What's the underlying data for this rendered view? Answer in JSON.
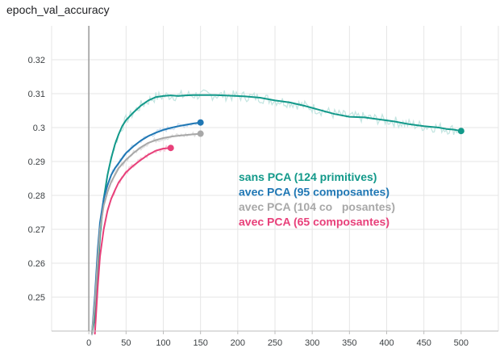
{
  "chart_data": {
    "type": "line",
    "title": "epoch_val_accuracy",
    "xlabel": "",
    "ylabel": "",
    "xlim": [
      -50,
      550
    ],
    "ylim": [
      0.24,
      0.33
    ],
    "x_ticks": [
      0,
      50,
      100,
      150,
      200,
      250,
      300,
      350,
      400,
      450,
      500
    ],
    "y_ticks": [
      0.25,
      0.26,
      0.27,
      0.28,
      0.29,
      0.3,
      0.31,
      0.32
    ],
    "y_tick_labels": [
      "0.25",
      "0.26",
      "0.27",
      "0.28",
      "0.29",
      "0.3",
      "0.31",
      "0.32"
    ],
    "grid": true,
    "legend_position": "center",
    "series": [
      {
        "name": "sans PCA (124 primitives)",
        "color": "#12998a",
        "raw_color": "#bfe3df",
        "x": [
          4,
          8,
          12,
          15,
          20,
          25,
          30,
          35,
          40,
          45,
          50,
          60,
          70,
          80,
          90,
          100,
          110,
          120,
          130,
          140,
          150,
          170,
          190,
          210,
          230,
          250,
          270,
          290,
          310,
          330,
          350,
          370,
          390,
          410,
          430,
          450,
          470,
          480,
          490,
          500
        ],
        "y": [
          0.239,
          0.244,
          0.257,
          0.268,
          0.279,
          0.286,
          0.291,
          0.295,
          0.298,
          0.3005,
          0.3022,
          0.3045,
          0.3065,
          0.308,
          0.309,
          0.3093,
          0.3095,
          0.3093,
          0.3095,
          0.3096,
          0.3096,
          0.3096,
          0.3094,
          0.3092,
          0.3088,
          0.308,
          0.3074,
          0.3064,
          0.3052,
          0.304,
          0.3032,
          0.303,
          0.3024,
          0.3018,
          0.301,
          0.3004,
          0.3,
          0.2996,
          0.2994,
          0.299
        ]
      },
      {
        "name": "avec PCA (95 composantes)",
        "color": "#1f77b4",
        "raw_color": "#c8dcf0",
        "x": [
          4,
          8,
          12,
          15,
          20,
          25,
          30,
          35,
          40,
          50,
          60,
          70,
          80,
          90,
          100,
          110,
          120,
          130,
          140,
          150
        ],
        "y": [
          0.239,
          0.25,
          0.264,
          0.272,
          0.279,
          0.283,
          0.286,
          0.288,
          0.2895,
          0.2925,
          0.2945,
          0.2962,
          0.2975,
          0.2985,
          0.2993,
          0.2999,
          0.3004,
          0.3008,
          0.3012,
          0.3015
        ]
      },
      {
        "name": "avec PCA (104 co   posantes)",
        "color": "#a8a8a8",
        "raw_color": "#dddddd",
        "x": [
          4,
          8,
          12,
          15,
          20,
          25,
          30,
          35,
          40,
          50,
          60,
          70,
          80,
          90,
          100,
          110,
          120,
          130,
          140,
          150
        ],
        "y": [
          0.239,
          0.248,
          0.261,
          0.27,
          0.277,
          0.281,
          0.284,
          0.286,
          0.288,
          0.2905,
          0.2925,
          0.2942,
          0.2955,
          0.2963,
          0.2969,
          0.2973,
          0.2976,
          0.2978,
          0.298,
          0.2982
        ]
      },
      {
        "name": "avec PCA (65 composantes)",
        "color": "#e8407a",
        "raw_color": "#f5c6d6",
        "x": [
          8,
          12,
          15,
          20,
          25,
          30,
          35,
          40,
          50,
          60,
          70,
          80,
          90,
          100,
          110
        ],
        "y": [
          0.239,
          0.253,
          0.262,
          0.27,
          0.2755,
          0.279,
          0.2815,
          0.2838,
          0.2868,
          0.2888,
          0.2905,
          0.292,
          0.2932,
          0.2938,
          0.294
        ]
      }
    ]
  }
}
